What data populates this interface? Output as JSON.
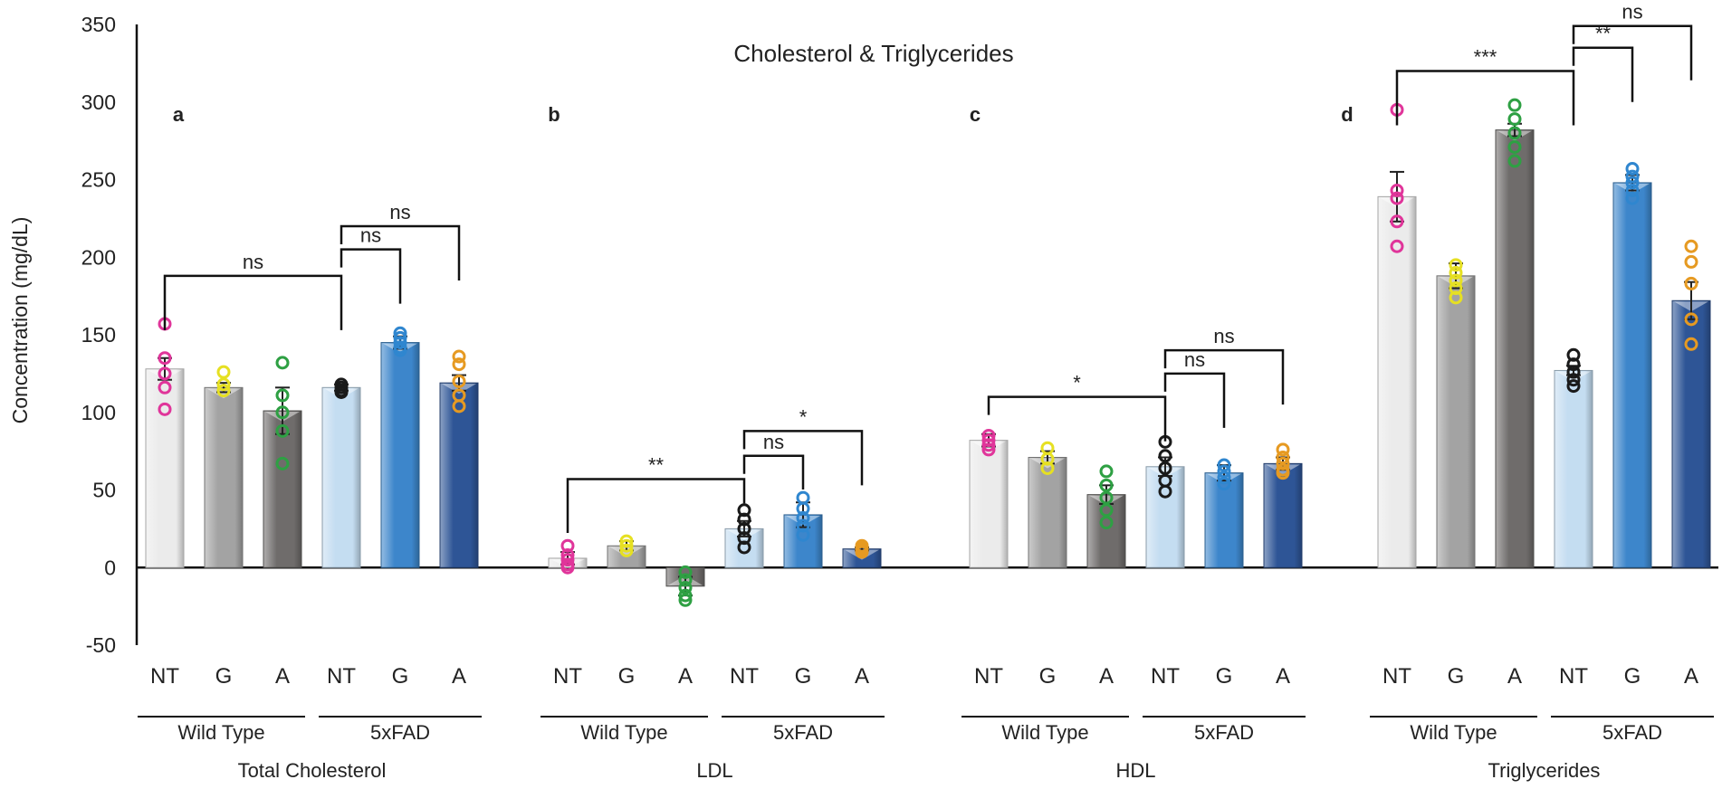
{
  "chart_data": {
    "type": "bar",
    "title": "Cholesterol & Triglycerides",
    "ylabel": "Concentration (mg/dL)",
    "xlabel": "",
    "ylim": [
      -50,
      350
    ],
    "yticks": [
      350,
      300,
      250,
      200,
      150,
      100,
      50,
      0,
      -50
    ],
    "categories": [
      "NT",
      "G",
      "A",
      "NT",
      "G",
      "A"
    ],
    "groups": [
      "Wild Type",
      "5xFAD"
    ],
    "colors": [
      "#ebebeb",
      "#a3a3a3",
      "#6f6c6b",
      "#c4ddf1",
      "#3d86cb",
      "#2e5596"
    ],
    "point_colors": [
      "#e0359a",
      "#e6e022",
      "#2ea043",
      "#1a1a1a",
      "#2f86cf",
      "#e69a22"
    ],
    "panels": [
      {
        "name": "Total Cholesterol",
        "letter": "a",
        "values": [
          128,
          116,
          101,
          116,
          145,
          119
        ],
        "errors": [
          7,
          3,
          15,
          2,
          4,
          5
        ],
        "points": [
          [
            157,
            135,
            125,
            116,
            102
          ],
          [
            126,
            118,
            114
          ],
          [
            132,
            111,
            100,
            88,
            67
          ],
          [
            118,
            116,
            114,
            113
          ],
          [
            151,
            148,
            145,
            142,
            140
          ],
          [
            136,
            131,
            120,
            111,
            104
          ]
        ],
        "significance": [
          {
            "from": 0,
            "to": 3,
            "y": 188,
            "label": "ns"
          },
          {
            "from": 3,
            "to": 4,
            "y": 205,
            "label": "ns"
          },
          {
            "from": 3,
            "to": 5,
            "y": 220,
            "label": "ns"
          }
        ]
      },
      {
        "name": "LDL",
        "letter": "b",
        "values": [
          6,
          14,
          -12,
          25,
          34,
          12
        ],
        "errors": [
          4,
          3,
          6,
          5,
          8,
          1
        ],
        "points": [
          [
            14,
            8,
            5,
            2,
            0
          ],
          [
            17,
            14,
            11
          ],
          [
            -3,
            -8,
            -13,
            -18,
            -21
          ],
          [
            37,
            31,
            25,
            19,
            13
          ],
          [
            45,
            38,
            32,
            27,
            21
          ],
          [
            14,
            13,
            12,
            11,
            10
          ]
        ],
        "significance": [
          {
            "from": 0,
            "to": 3,
            "y": 57,
            "label": "**"
          },
          {
            "from": 3,
            "to": 4,
            "y": 72,
            "label": "ns"
          },
          {
            "from": 3,
            "to": 5,
            "y": 88,
            "label": "*"
          }
        ]
      },
      {
        "name": "HDL",
        "letter": "c",
        "values": [
          82,
          71,
          47,
          65,
          61,
          67
        ],
        "errors": [
          4,
          4,
          6,
          6,
          5,
          4
        ],
        "points": [
          [
            85,
            82,
            79,
            76
          ],
          [
            77,
            70,
            64
          ],
          [
            62,
            53,
            45,
            37,
            29
          ],
          [
            81,
            72,
            64,
            56,
            49
          ],
          [
            66,
            62,
            58,
            54
          ],
          [
            76,
            71,
            67,
            63,
            61
          ]
        ],
        "significance": [
          {
            "from": 0,
            "to": 3,
            "y": 110,
            "label": "*"
          },
          {
            "from": 3,
            "to": 4,
            "y": 125,
            "label": "ns"
          },
          {
            "from": 3,
            "to": 5,
            "y": 140,
            "label": "ns"
          }
        ]
      },
      {
        "name": "Triglycerides",
        "letter": "d",
        "values": [
          239,
          188,
          282,
          127,
          248,
          172
        ],
        "errors": [
          16,
          8,
          4,
          3,
          5,
          12
        ],
        "points": [
          [
            295,
            243,
            238,
            223,
            207
          ],
          [
            195,
            190,
            185,
            180,
            174
          ],
          [
            298,
            289,
            280,
            271,
            262
          ],
          [
            137,
            131,
            126,
            121,
            117
          ],
          [
            257,
            252,
            248,
            243,
            238
          ],
          [
            207,
            197,
            183,
            160,
            144
          ]
        ],
        "significance": [
          {
            "from": 0,
            "to": 3,
            "y": 320,
            "label": "***"
          },
          {
            "from": 3,
            "to": 4,
            "y": 335,
            "label": "**"
          },
          {
            "from": 3,
            "to": 5,
            "y": 349,
            "label": "ns"
          }
        ]
      }
    ]
  }
}
